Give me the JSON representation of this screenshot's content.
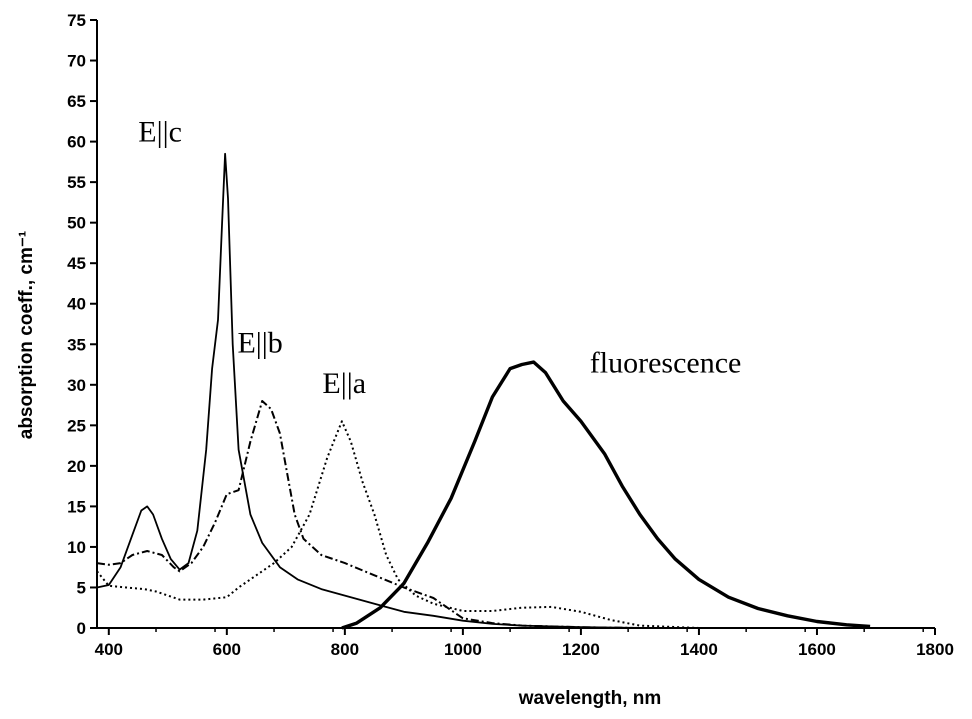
{
  "chart_data": {
    "type": "line",
    "xlabel": "wavelength, nm",
    "ylabel": "absorption coeff., cm⁻¹",
    "xlim": [
      380,
      1800
    ],
    "ylim": [
      0,
      75
    ],
    "x_ticks": [
      400,
      600,
      800,
      1000,
      1200,
      1400,
      1600,
      1800
    ],
    "y_ticks": [
      0,
      5,
      10,
      15,
      20,
      25,
      30,
      35,
      40,
      45,
      50,
      55,
      60,
      65,
      70,
      75
    ],
    "grid": false,
    "series": [
      {
        "name": "E||c",
        "style": "solid",
        "points": [
          [
            380,
            5
          ],
          [
            400,
            5.3
          ],
          [
            420,
            7.5
          ],
          [
            440,
            11.5
          ],
          [
            455,
            14.5
          ],
          [
            465,
            15
          ],
          [
            475,
            14
          ],
          [
            490,
            11
          ],
          [
            505,
            8.5
          ],
          [
            520,
            7.2
          ],
          [
            535,
            8
          ],
          [
            550,
            12
          ],
          [
            565,
            22
          ],
          [
            575,
            32
          ],
          [
            585,
            38
          ],
          [
            592,
            50
          ],
          [
            597,
            58.5
          ],
          [
            602,
            53
          ],
          [
            610,
            35
          ],
          [
            620,
            22
          ],
          [
            640,
            14
          ],
          [
            660,
            10.5
          ],
          [
            690,
            7.5
          ],
          [
            720,
            6
          ],
          [
            760,
            4.8
          ],
          [
            800,
            4
          ],
          [
            850,
            3
          ],
          [
            900,
            2
          ],
          [
            950,
            1.5
          ],
          [
            1000,
            0.9
          ],
          [
            1050,
            0.5
          ],
          [
            1100,
            0.3
          ],
          [
            1200,
            0.1
          ],
          [
            1300,
            0
          ]
        ]
      },
      {
        "name": "E||b",
        "style": "dashdot",
        "points": [
          [
            380,
            8
          ],
          [
            400,
            7.8
          ],
          [
            420,
            8
          ],
          [
            440,
            9
          ],
          [
            465,
            9.5
          ],
          [
            490,
            9
          ],
          [
            510,
            7.5
          ],
          [
            520,
            7
          ],
          [
            540,
            8
          ],
          [
            560,
            10
          ],
          [
            580,
            13
          ],
          [
            600,
            16.5
          ],
          [
            620,
            17
          ],
          [
            640,
            23
          ],
          [
            660,
            28
          ],
          [
            675,
            27
          ],
          [
            690,
            24
          ],
          [
            700,
            20
          ],
          [
            715,
            14
          ],
          [
            730,
            11
          ],
          [
            760,
            9
          ],
          [
            800,
            8
          ],
          [
            850,
            6.5
          ],
          [
            900,
            5
          ],
          [
            950,
            3.7
          ],
          [
            980,
            2.2
          ],
          [
            1000,
            1.2
          ],
          [
            1050,
            0.6
          ],
          [
            1100,
            0.3
          ],
          [
            1200,
            0.1
          ],
          [
            1300,
            0
          ]
        ]
      },
      {
        "name": "E||a",
        "style": "dotted",
        "points": [
          [
            380,
            7
          ],
          [
            400,
            5.2
          ],
          [
            430,
            5
          ],
          [
            460,
            4.8
          ],
          [
            480,
            4.5
          ],
          [
            520,
            3.5
          ],
          [
            560,
            3.5
          ],
          [
            600,
            3.8
          ],
          [
            620,
            5
          ],
          [
            650,
            6.5
          ],
          [
            680,
            8
          ],
          [
            710,
            10
          ],
          [
            740,
            14
          ],
          [
            770,
            21
          ],
          [
            795,
            25.5
          ],
          [
            810,
            23
          ],
          [
            830,
            18
          ],
          [
            850,
            14
          ],
          [
            870,
            9
          ],
          [
            890,
            6
          ],
          [
            920,
            4
          ],
          [
            950,
            3
          ],
          [
            1000,
            2.1
          ],
          [
            1050,
            2.1
          ],
          [
            1100,
            2.5
          ],
          [
            1150,
            2.6
          ],
          [
            1200,
            2
          ],
          [
            1250,
            1
          ],
          [
            1300,
            0.3
          ],
          [
            1400,
            0
          ]
        ]
      },
      {
        "name": "fluorescence",
        "style": "solid-thick",
        "points": [
          [
            795,
            0
          ],
          [
            820,
            0.6
          ],
          [
            860,
            2.5
          ],
          [
            900,
            5.5
          ],
          [
            940,
            10.5
          ],
          [
            980,
            16
          ],
          [
            1020,
            23
          ],
          [
            1050,
            28.5
          ],
          [
            1080,
            32
          ],
          [
            1100,
            32.5
          ],
          [
            1120,
            32.8
          ],
          [
            1140,
            31.5
          ],
          [
            1170,
            28
          ],
          [
            1200,
            25.5
          ],
          [
            1240,
            21.5
          ],
          [
            1270,
            17.5
          ],
          [
            1300,
            14
          ],
          [
            1330,
            11
          ],
          [
            1360,
            8.5
          ],
          [
            1400,
            6
          ],
          [
            1450,
            3.8
          ],
          [
            1500,
            2.4
          ],
          [
            1550,
            1.5
          ],
          [
            1600,
            0.8
          ],
          [
            1650,
            0.4
          ],
          [
            1690,
            0.2
          ]
        ]
      }
    ],
    "annotations": [
      {
        "text": "E||c",
        "x": 450,
        "y": 60
      },
      {
        "text": "E||b",
        "x": 618,
        "y": 34
      },
      {
        "text": "E||a",
        "x": 762,
        "y": 29
      },
      {
        "text": "fluorescence",
        "x": 1215,
        "y": 31.5
      }
    ]
  }
}
